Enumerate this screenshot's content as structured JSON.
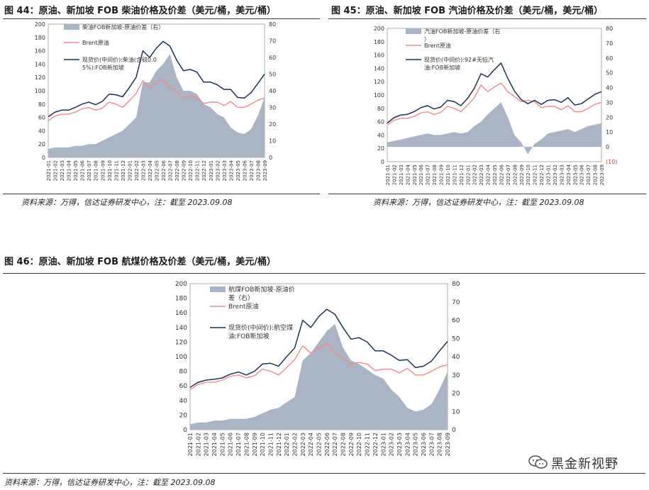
{
  "figures": [
    {
      "title": "图 44：原油、新加坡 FOB 柴油价格及价差（美元/桶，美元/桶）",
      "source": "资料来源：万得，信达证券研发中心，注：截至 2023.09.08"
    },
    {
      "title": "图 45：原油、新加坡 FOB 汽油价格及价差（美元/桶，美元/桶）",
      "source": "资料来源：万得，信达证券研发中心，注：截至 2023.09.08"
    },
    {
      "title": "图 46：原油、新加坡 FOB 航煤价格及价差（美元/桶，美元/桶）",
      "source": "资料来源：万得，信达证券研发中心，注：截至 2023.09.08"
    }
  ],
  "watermark": "黑金新视野",
  "colors": {
    "spread": "#aab4c4",
    "brent": "#f08c8c",
    "product": "#1f3159",
    "neg_label": "#e23a3a"
  },
  "chart_data": [
    {
      "type": "line",
      "x": [
        "2021-01",
        "2021-02",
        "2021-03",
        "2021-04",
        "2021-05",
        "2021-06",
        "2021-07",
        "2021-08",
        "2021-09",
        "2021-10",
        "2021-11",
        "2021-12",
        "2022-01",
        "2022-02",
        "2022-03",
        "2022-04",
        "2022-05",
        "2022-06",
        "2022-07",
        "2022-08",
        "2022-09",
        "2022-10",
        "2022-11",
        "2022-12",
        "2023-01",
        "2023-02",
        "2023-03",
        "2023-04",
        "2023-05",
        "2023-06",
        "2023-07",
        "2023-08",
        "2023-09"
      ],
      "ylim_left": [
        0,
        200
      ],
      "yticks_left": [
        0,
        20,
        40,
        60,
        80,
        100,
        120,
        140,
        160,
        180,
        200
      ],
      "ylim_right": [
        0,
        80
      ],
      "yticks_right": [
        0,
        10,
        20,
        30,
        40,
        50,
        60,
        70,
        80
      ],
      "series": [
        {
          "name": "柴油FOB新加坡-原油价差（右）",
          "kind": "area",
          "axis": "right",
          "values": [
            5,
            6,
            6,
            6,
            7,
            7,
            8,
            8,
            10,
            12,
            14,
            16,
            20,
            24,
            45,
            45,
            52,
            56,
            62,
            48,
            40,
            40,
            38,
            32,
            30,
            26,
            24,
            18,
            15,
            14,
            17,
            25,
            36
          ]
        },
        {
          "name": "Brent原油",
          "kind": "line",
          "axis": "left",
          "values": [
            55,
            62,
            65,
            65,
            68,
            73,
            75,
            71,
            74,
            83,
            80,
            75,
            85,
            96,
            115,
            105,
            112,
            118,
            105,
            98,
            90,
            92,
            90,
            81,
            83,
            83,
            78,
            84,
            75,
            75,
            80,
            86,
            89
          ]
        },
        {
          "name": "现货价(中间价):柴油(含硫0.05%):FOB新加坡",
          "kind": "line",
          "axis": "left",
          "values": [
            61,
            68,
            71,
            71,
            75,
            80,
            83,
            79,
            84,
            95,
            94,
            91,
            105,
            120,
            160,
            150,
            164,
            174,
            167,
            146,
            130,
            132,
            128,
            113,
            113,
            109,
            102,
            102,
            90,
            89,
            97,
            111,
            125
          ]
        }
      ]
    },
    {
      "type": "line",
      "x": [
        "2021-01",
        "2021-02",
        "2021-03",
        "2021-04",
        "2021-05",
        "2021-06",
        "2021-07",
        "2021-08",
        "2021-09",
        "2021-10",
        "2021-11",
        "2021-12",
        "2022-01",
        "2022-02",
        "2022-03",
        "2022-04",
        "2022-05",
        "2022-06",
        "2022-07",
        "2022-08",
        "2022-09",
        "2022-10",
        "2022-11",
        "2022-12",
        "2023-01",
        "2023-02",
        "2023-03",
        "2023-04",
        "2023-05",
        "2023-06",
        "2023-07",
        "2023-08",
        "2023-09"
      ],
      "ylim_left": [
        0,
        200
      ],
      "yticks_left": [
        0,
        20,
        40,
        60,
        80,
        100,
        120,
        140,
        160,
        180,
        200
      ],
      "ylim_right": [
        -10,
        80
      ],
      "yticks_right": [
        -10,
        0,
        10,
        20,
        30,
        40,
        50,
        60,
        70,
        80
      ],
      "negative_tick_label": "(10)",
      "series": [
        {
          "name": "汽油FOB新加坡-原油价差（右）",
          "kind": "area",
          "axis": "right",
          "values": [
            3,
            4,
            5,
            6,
            7,
            8,
            9,
            8,
            8,
            9,
            10,
            9,
            10,
            14,
            17,
            22,
            26,
            30,
            20,
            8,
            3,
            -5,
            2,
            5,
            9,
            10,
            11,
            12,
            10,
            12,
            14,
            15,
            16
          ]
        },
        {
          "name": "Brent原油",
          "kind": "line",
          "axis": "left",
          "values": [
            55,
            62,
            65,
            65,
            68,
            73,
            75,
            71,
            74,
            83,
            80,
            75,
            85,
            96,
            115,
            105,
            112,
            118,
            105,
            98,
            90,
            92,
            90,
            81,
            83,
            83,
            78,
            84,
            75,
            75,
            80,
            86,
            89
          ]
        },
        {
          "name": "现货价(中间价):92#无铅汽油:FOB新加坡",
          "kind": "line",
          "axis": "left",
          "values": [
            58,
            66,
            70,
            71,
            75,
            81,
            84,
            79,
            82,
            92,
            90,
            84,
            95,
            110,
            132,
            127,
            138,
            148,
            125,
            106,
            93,
            87,
            92,
            86,
            92,
            93,
            89,
            96,
            85,
            87,
            94,
            101,
            105
          ]
        }
      ]
    },
    {
      "type": "line",
      "x": [
        "2021-01",
        "2021-02",
        "2021-03",
        "2021-04",
        "2021-05",
        "2021-06",
        "2021-07",
        "2021-08",
        "2021-09",
        "2021-10",
        "2021-11",
        "2021-12",
        "2022-01",
        "2022-02",
        "2022-03",
        "2022-04",
        "2022-05",
        "2022-06",
        "2022-07",
        "2022-08",
        "2022-09",
        "2022-10",
        "2022-11",
        "2022-12",
        "2023-01",
        "2023-02",
        "2023-03",
        "2023-04",
        "2023-05",
        "2023-06",
        "2023-07",
        "2023-08",
        "2023-09"
      ],
      "ylim_left": [
        0,
        200
      ],
      "yticks_left": [
        0,
        20,
        40,
        60,
        80,
        100,
        120,
        140,
        160,
        180,
        200
      ],
      "ylim_right": [
        0,
        80
      ],
      "yticks_right": [
        0,
        10,
        20,
        30,
        40,
        50,
        60,
        70,
        80
      ],
      "series": [
        {
          "name": "航煤FOB新加坡-原油价差（右）",
          "kind": "area",
          "axis": "right",
          "values": [
            3,
            4,
            4,
            5,
            5,
            6,
            6,
            6,
            7,
            9,
            11,
            12,
            15,
            18,
            38,
            42,
            48,
            54,
            58,
            45,
            38,
            36,
            33,
            30,
            28,
            22,
            18,
            12,
            10,
            11,
            14,
            22,
            32
          ]
        },
        {
          "name": "Brent原油",
          "kind": "line",
          "axis": "left",
          "values": [
            55,
            62,
            65,
            65,
            68,
            73,
            75,
            71,
            74,
            83,
            80,
            75,
            85,
            96,
            115,
            105,
            112,
            118,
            105,
            98,
            90,
            92,
            90,
            81,
            83,
            83,
            78,
            84,
            75,
            75,
            80,
            86,
            89
          ]
        },
        {
          "name": "现货价(中间价):航空煤油:FOB新加坡",
          "kind": "line",
          "axis": "left",
          "values": [
            58,
            65,
            68,
            69,
            71,
            76,
            79,
            75,
            80,
            90,
            91,
            87,
            100,
            112,
            150,
            140,
            155,
            165,
            158,
            140,
            124,
            126,
            120,
            108,
            108,
            102,
            95,
            96,
            85,
            87,
            94,
            108,
            121
          ]
        }
      ]
    }
  ]
}
